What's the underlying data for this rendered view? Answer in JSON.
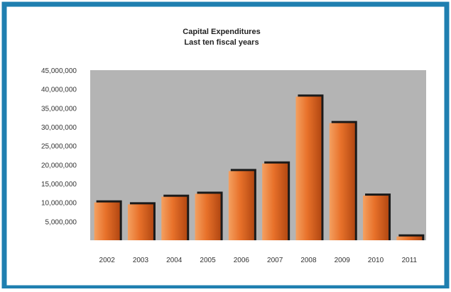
{
  "chart_data": {
    "type": "bar",
    "title": "Capital Expenditures",
    "subtitle": "Last ten fiscal years",
    "xlabel": "",
    "ylabel": "",
    "categories": [
      "2002",
      "2003",
      "2004",
      "2005",
      "2006",
      "2007",
      "2008",
      "2009",
      "2010",
      "2011"
    ],
    "values": [
      10000000,
      9500000,
      11500000,
      12300000,
      18300000,
      20300000,
      38000000,
      31000000,
      11800000,
      1000000
    ],
    "ylim": [
      0,
      45000000
    ],
    "yticks": [
      5000000,
      10000000,
      15000000,
      20000000,
      25000000,
      30000000,
      35000000,
      40000000,
      45000000
    ],
    "ytick_labels": [
      "5,000,000",
      "10,000,000",
      "15,000,000",
      "20,000,000",
      "25,000,000",
      "30,000,000",
      "35,000,000",
      "40,000,000",
      "45,000,000"
    ],
    "grid": false,
    "legend": "none",
    "colors": {
      "bar_light": "#f4a060",
      "bar_mid": "#e8712a",
      "bar_dark": "#b34812",
      "bar_shadow": "#1a1a1a",
      "plot_bg": "#b4b4b4",
      "panel_bg": "#ffffff",
      "border": "#1f7fb0"
    }
  }
}
